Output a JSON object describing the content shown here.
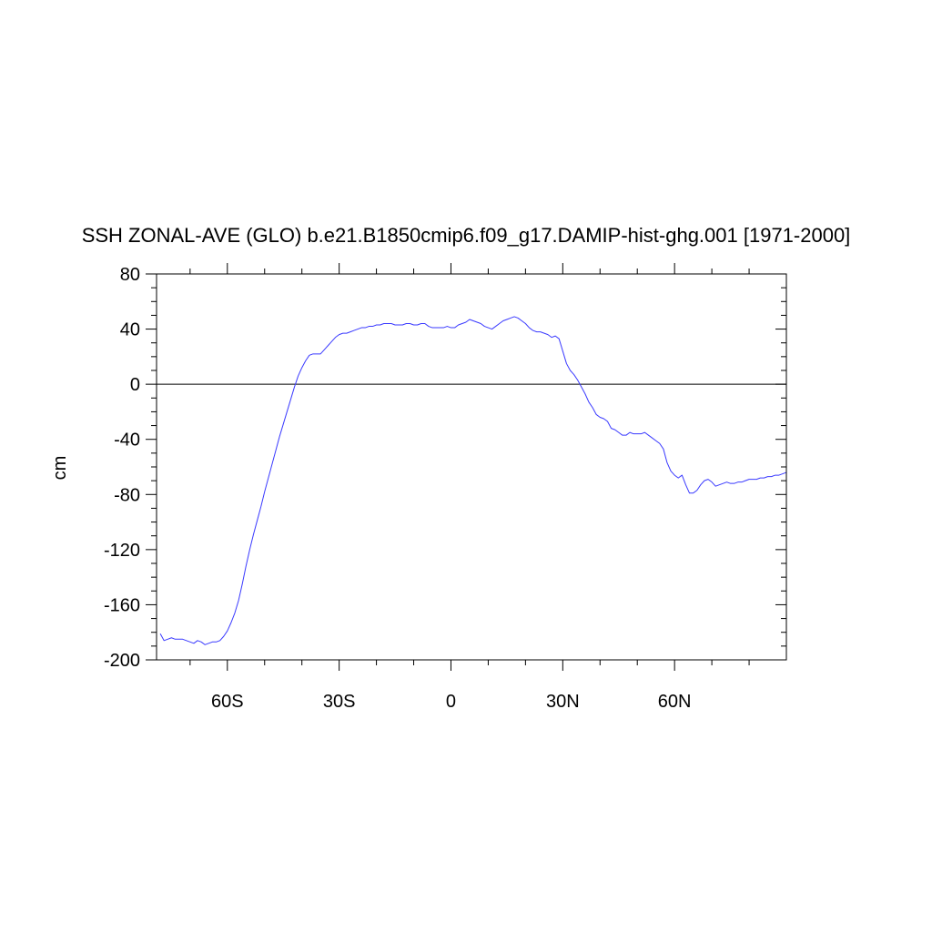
{
  "chart_data": {
    "type": "line",
    "title": "SSH ZONAL-AVE (GLO) b.e21.B1850cmip6.f09_g17.DAMIP-hist-ghg.001 [1971-2000]",
    "xlabel": "",
    "ylabel": "cm",
    "xlim": [
      -79,
      90
    ],
    "ylim": [
      -200,
      80
    ],
    "x_ticks": [
      {
        "value": -60,
        "label": "60S"
      },
      {
        "value": -30,
        "label": "30S"
      },
      {
        "value": 0,
        "label": "0"
      },
      {
        "value": 30,
        "label": "30N"
      },
      {
        "value": 60,
        "label": "60N"
      }
    ],
    "y_ticks": [
      80,
      40,
      0,
      -40,
      -80,
      -120,
      -160,
      -200
    ],
    "y_tick_labels": [
      "80",
      "40",
      "0",
      "-40",
      "-80",
      "-120",
      "-160",
      "-200"
    ],
    "reference_line": 0,
    "grid": false,
    "line_color": "#3a3aff",
    "series": [
      {
        "x": [
          -78,
          -77,
          -76,
          -75,
          -74,
          -73,
          -72,
          -71,
          -70,
          -69,
          -68,
          -67,
          -66,
          -65,
          -64,
          -63,
          -62,
          -61,
          -60,
          -59,
          -58,
          -57,
          -56,
          -55,
          -54,
          -53,
          -52,
          -51,
          -50,
          -49,
          -48,
          -47,
          -46,
          -45,
          -44,
          -43,
          -42,
          -41,
          -40,
          -39,
          -38,
          -37,
          -36,
          -35,
          -34,
          -33,
          -32,
          -31,
          -30,
          -29,
          -28,
          -27,
          -26,
          -25,
          -24,
          -23,
          -22,
          -21,
          -20,
          -19,
          -18,
          -17,
          -16,
          -15,
          -14,
          -13,
          -12,
          -11,
          -10,
          -9,
          -8,
          -7,
          -6,
          -5,
          -4,
          -3,
          -2,
          -1,
          0,
          1,
          2,
          3,
          4,
          5,
          6,
          7,
          8,
          9,
          10,
          11,
          12,
          13,
          14,
          15,
          16,
          17,
          18,
          19,
          20,
          21,
          22,
          23,
          24,
          25,
          26,
          27,
          28,
          29,
          30,
          31,
          32,
          33,
          34,
          35,
          36,
          37,
          38,
          39,
          40,
          41,
          42,
          43,
          44,
          45,
          46,
          47,
          48,
          49,
          50,
          51,
          52,
          53,
          54,
          55,
          56,
          57,
          58,
          59,
          60,
          61,
          62,
          63,
          64,
          65,
          66,
          67,
          68,
          69,
          70,
          71,
          72,
          73,
          74,
          75,
          76,
          77,
          78,
          79,
          80,
          81,
          82,
          83,
          84,
          85,
          86,
          87,
          88,
          89,
          90
        ],
        "y": [
          -181,
          -186,
          -185,
          -184,
          -185,
          -185,
          -185,
          -186,
          -187,
          -188,
          -186,
          -187,
          -189,
          -188,
          -187,
          -187,
          -186,
          -183,
          -179,
          -173,
          -166,
          -157,
          -145,
          -132,
          -120,
          -109,
          -99,
          -89,
          -78,
          -68,
          -58,
          -48,
          -38,
          -29,
          -20,
          -11,
          -2,
          6,
          12,
          17,
          21,
          22,
          22,
          22,
          25,
          28,
          31,
          34,
          36,
          37,
          37,
          38,
          39,
          40,
          41,
          41,
          42,
          42,
          43,
          43,
          44,
          44,
          44,
          43,
          43,
          43,
          44,
          44,
          43,
          43,
          44,
          44,
          42,
          41,
          41,
          41,
          41,
          42,
          41,
          41,
          43,
          44,
          45,
          47,
          46,
          45,
          44,
          42,
          41,
          40,
          42,
          44,
          46,
          47,
          48,
          49,
          48,
          46,
          44,
          41,
          39,
          38,
          38,
          37,
          36,
          34,
          35,
          33,
          24,
          15,
          10,
          7,
          3,
          -2,
          -7,
          -13,
          -17,
          -22,
          -24,
          -25,
          -27,
          -32,
          -33,
          -35,
          -37,
          -37,
          -35,
          -36,
          -36,
          -36,
          -35,
          -37,
          -39,
          -41,
          -43,
          -47,
          -57,
          -63,
          -66,
          -68,
          -66,
          -73,
          -79,
          -79,
          -77,
          -73,
          -70,
          -69,
          -71,
          -74,
          -73,
          -72,
          -71,
          -72,
          -72,
          -71,
          -71,
          -70,
          -69,
          -69,
          -69,
          -68,
          -68,
          -67,
          -67,
          -66,
          -66,
          -65,
          -64
        ]
      }
    ]
  }
}
